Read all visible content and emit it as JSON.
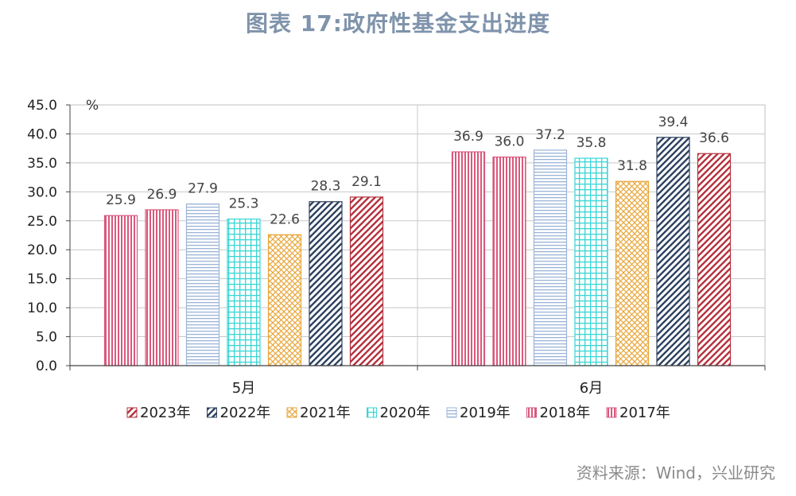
{
  "title": "图表 17:政府性基金支出进度",
  "source": "资料来源：Wind，兴业研究",
  "chart_data": {
    "type": "bar",
    "title": "图表 17:政府性基金支出进度",
    "unit_label": "%",
    "categories": [
      "5月",
      "6月"
    ],
    "ylim": [
      0,
      45
    ],
    "yticks": [
      0,
      5,
      10,
      15,
      20,
      25,
      30,
      35,
      40,
      45
    ],
    "ytick_labels": [
      "0.0",
      "5.0",
      "10.0",
      "15.0",
      "20.0",
      "25.0",
      "30.0",
      "35.0",
      "40.0",
      "45.0"
    ],
    "grid": true,
    "legend_position": "bottom",
    "series": [
      {
        "name": "2017年",
        "values": [
          25.9,
          36.9
        ],
        "color": "#d9587d",
        "pattern": "vertical"
      },
      {
        "name": "2018年",
        "values": [
          26.9,
          36.0
        ],
        "color": "#d9587d",
        "pattern": "vertical"
      },
      {
        "name": "2019年",
        "values": [
          27.9,
          37.2
        ],
        "color": "#9bb4d8",
        "pattern": "horizontal"
      },
      {
        "name": "2020年",
        "values": [
          25.3,
          35.8
        ],
        "color": "#39d6d4",
        "pattern": "grid"
      },
      {
        "name": "2021年",
        "values": [
          22.6,
          31.8
        ],
        "color": "#e8a63a",
        "pattern": "cross"
      },
      {
        "name": "2022年",
        "values": [
          28.3,
          39.4
        ],
        "color": "#2e4261",
        "pattern": "diag"
      },
      {
        "name": "2023年",
        "values": [
          29.1,
          36.6
        ],
        "color": "#b5323e",
        "pattern": "diag"
      }
    ],
    "legend_order": [
      "2023年",
      "2022年",
      "2021年",
      "2020年",
      "2019年",
      "2018年",
      "2017年"
    ]
  }
}
